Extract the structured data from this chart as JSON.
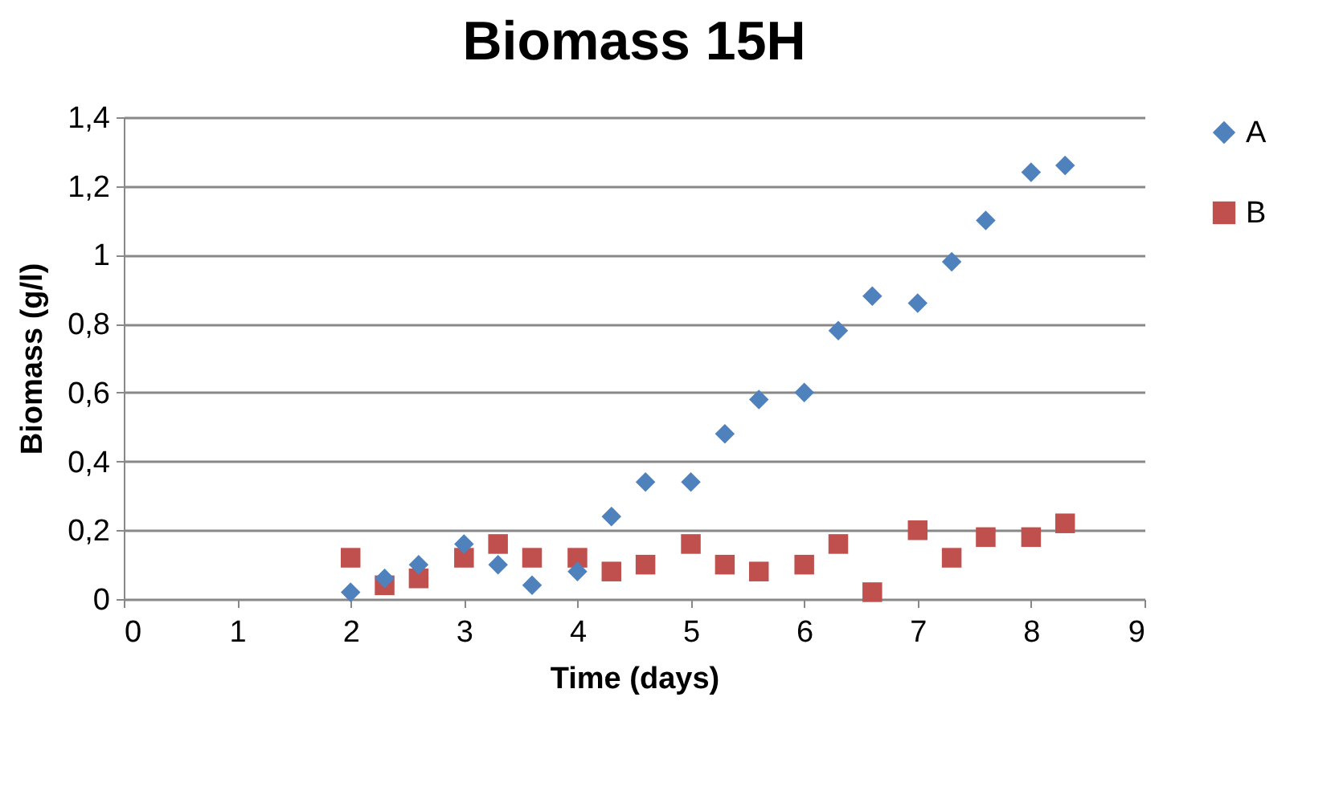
{
  "chart_data": {
    "type": "scatter",
    "title": "Biomass 15H",
    "xlabel": "Time (days)",
    "ylabel": "Biomass (g/l)",
    "xlim": [
      0,
      9
    ],
    "xticks": [
      0,
      1,
      2,
      3,
      4,
      5,
      6,
      7,
      8,
      9
    ],
    "ylim": [
      0,
      1.4
    ],
    "yticks": [
      0,
      {
        "value": 0.2,
        "label": "0,2"
      },
      {
        "value": 0.4,
        "label": "0,4"
      },
      {
        "value": 0.6,
        "label": "0,6"
      },
      {
        "value": 0.8,
        "label": "0,8"
      },
      1,
      {
        "value": 1.2,
        "label": "1,2"
      },
      {
        "value": 1.4,
        "label": "1,4"
      }
    ],
    "grid": "y",
    "legend": "right",
    "x": [
      2,
      2.3,
      2.6,
      3,
      3.3,
      3.6,
      4,
      4.3,
      4.6,
      5,
      5.3,
      5.6,
      6,
      6.3,
      6.6,
      7,
      7.3,
      7.6,
      8,
      8.3
    ],
    "series": [
      {
        "name": "A",
        "color": "#4f81bd",
        "marker": "diamond",
        "values": [
          0.02,
          0.06,
          0.1,
          0.16,
          0.1,
          0.04,
          0.08,
          0.24,
          0.34,
          0.34,
          0.48,
          0.58,
          0.6,
          0.78,
          0.88,
          0.86,
          0.98,
          1.1,
          1.24,
          1.26
        ]
      },
      {
        "name": "B",
        "color": "#c0504d",
        "marker": "square",
        "values": [
          0.12,
          0.04,
          0.06,
          0.12,
          0.16,
          0.12,
          0.12,
          0.08,
          0.1,
          0.16,
          0.1,
          0.08,
          0.1,
          0.16,
          0.02,
          0.2,
          0.12,
          0.18,
          0.18,
          0.22
        ]
      }
    ]
  }
}
